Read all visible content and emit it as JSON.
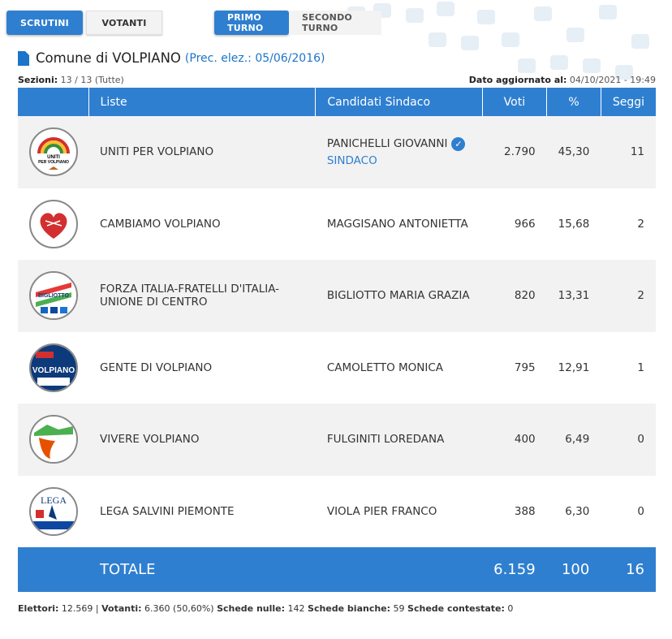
{
  "tabs": {
    "scrutini": "SCRUTINI",
    "votanti": "VOTANTI",
    "primo_turno": "PRIMO TURNO",
    "secondo_turno": "SECONDO TURNO"
  },
  "title": {
    "main": "Comune di VOLPIANO",
    "sub": "(Prec. elez.: 05/06/2016)"
  },
  "meta": {
    "sezioni_label": "Sezioni:",
    "sezioni_value": "13 / 13 (Tutte)",
    "updated_label": "Dato aggiornato al:",
    "updated_value": "04/10/2021 - 19:49"
  },
  "table": {
    "headers": [
      "Liste",
      "Candidati Sindaco",
      "Voti",
      "%",
      "Seggi"
    ],
    "rows": [
      {
        "lista": "UNITI PER VOLPIANO",
        "candidato": "PANICHELLI GIOVANNI",
        "elected": "SINDACO",
        "voti": "2.790",
        "perc": "45,30",
        "seggi": "11",
        "logo_icon": "uniti-per-volpiano-logo"
      },
      {
        "lista": "CAMBIAMO VOLPIANO",
        "candidato": "MAGGISANO ANTONIETTA",
        "voti": "966",
        "perc": "15,68",
        "seggi": "2",
        "logo_icon": "cambiamo-volpiano-logo"
      },
      {
        "lista": "FORZA ITALIA-FRATELLI D'ITALIA-UNIONE DI CENTRO",
        "candidato": "BIGLIOTTO MARIA GRAZIA",
        "voti": "820",
        "perc": "13,31",
        "seggi": "2",
        "logo_icon": "centro-destra-bigliotto-logo"
      },
      {
        "lista": "GENTE DI VOLPIANO",
        "candidato": "CAMOLETTO MONICA",
        "voti": "795",
        "perc": "12,91",
        "seggi": "1",
        "logo_icon": "gente-di-volpiano-logo"
      },
      {
        "lista": "VIVERE VOLPIANO",
        "candidato": "FULGINITI LOREDANA",
        "voti": "400",
        "perc": "6,49",
        "seggi": "0",
        "logo_icon": "vivere-volpiano-logo"
      },
      {
        "lista": "LEGA SALVINI PIEMONTE",
        "candidato": "VIOLA PIER FRANCO",
        "voti": "388",
        "perc": "6,30",
        "seggi": "0",
        "logo_icon": "lega-salvini-piemonte-logo"
      }
    ],
    "totale": {
      "label": "TOTALE",
      "voti": "6.159",
      "perc": "100",
      "seggi": "16"
    }
  },
  "footer": {
    "elettori_label": "Elettori:",
    "elettori_value": "12.569 |",
    "votanti_label": "Votanti:",
    "votanti_value": "6.360 (50,60%)",
    "nulle_label": "Schede nulle:",
    "nulle_value": "142",
    "bianche_label": "Schede bianche:",
    "bianche_value": "59",
    "contestate_label": "Schede contestate:",
    "contestate_value": "0"
  },
  "colors": {
    "accent": "#2f7fd0",
    "title_icon": "#1b75c8"
  }
}
